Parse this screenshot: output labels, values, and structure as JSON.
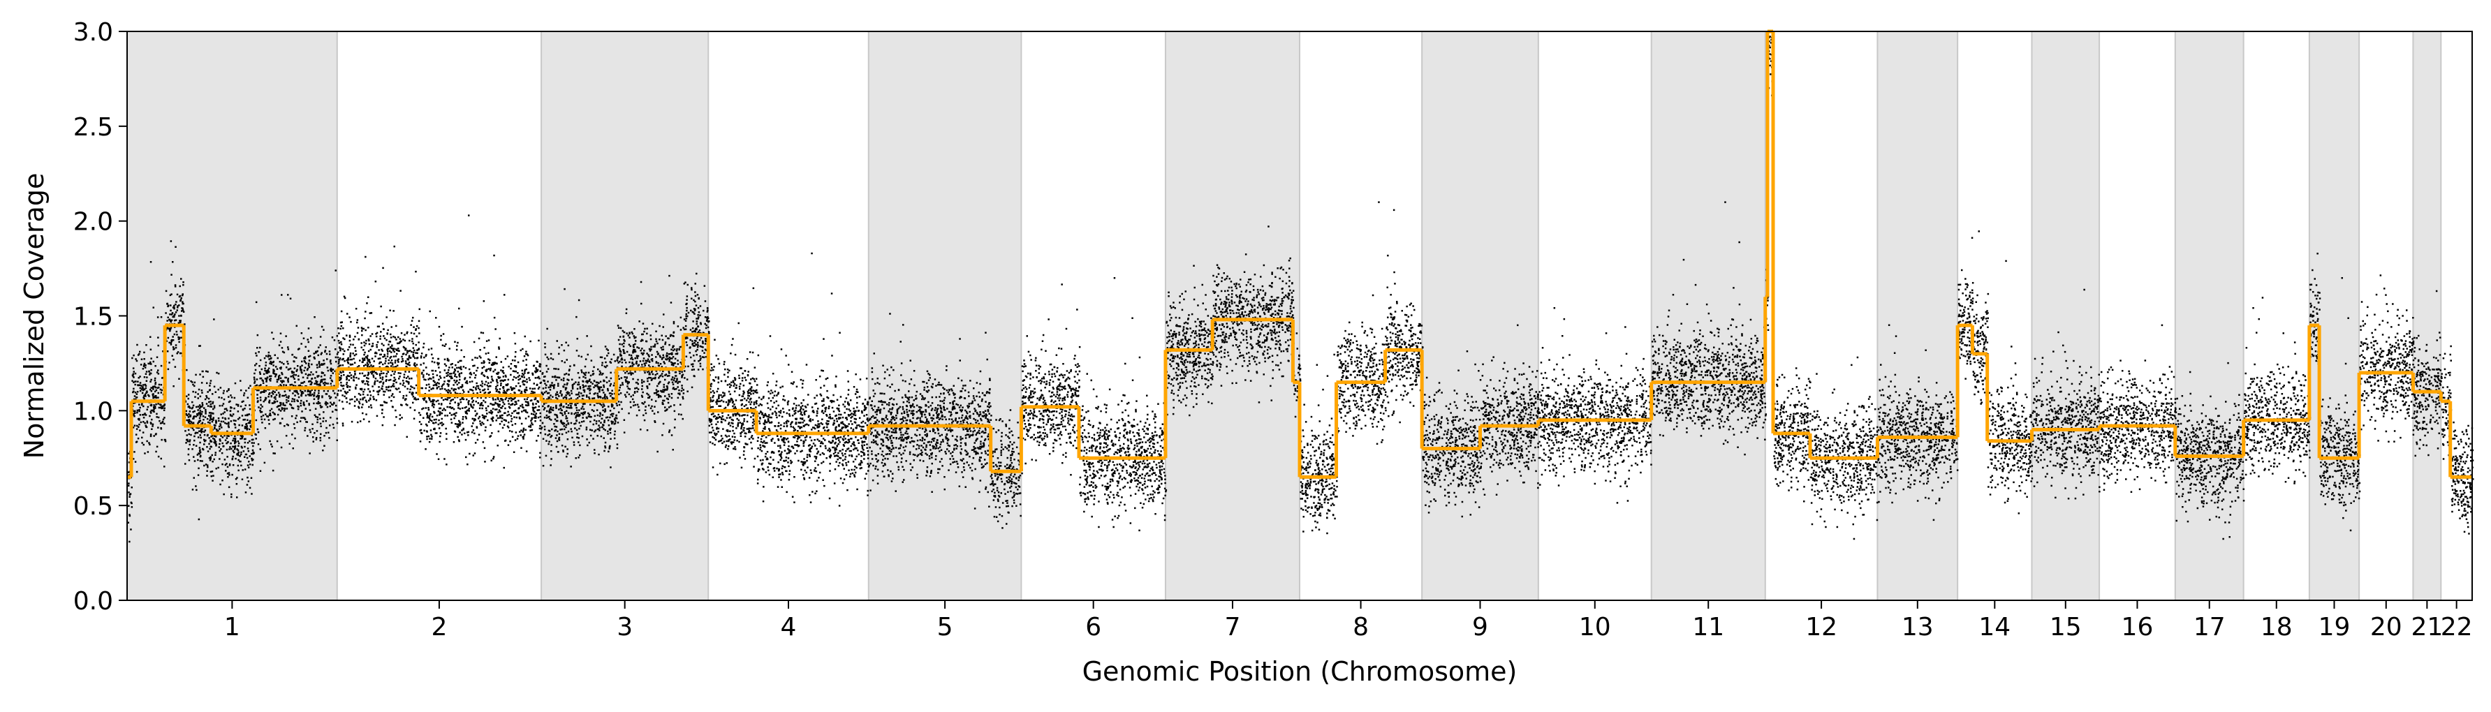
{
  "chart_data": {
    "type": "scatter",
    "title": "",
    "xlabel": "Genomic Position (Chromosome)",
    "ylabel": "Normalized Coverage",
    "ylim": [
      0,
      3
    ],
    "yticks": [
      0.0,
      0.5,
      1.0,
      1.5,
      2.0,
      2.5,
      3.0
    ],
    "ytick_labels": [
      "0.0",
      "0.5",
      "1.0",
      "1.5",
      "2.0",
      "2.5",
      "3.0"
    ],
    "grid": false,
    "legend": "none",
    "chromosome_bands": "alternating gray/white",
    "colors": {
      "points": "#000000",
      "segments": "#ffa500",
      "band": "#e5e5e5",
      "band_edge": "#c8c8c8"
    },
    "chromosomes": [
      {
        "label": "1",
        "size": 249,
        "baseline": 1.0,
        "shaded": true
      },
      {
        "label": "2",
        "size": 242,
        "baseline": 1.12,
        "shaded": false
      },
      {
        "label": "3",
        "size": 198,
        "baseline": 1.15,
        "shaded": true
      },
      {
        "label": "4",
        "size": 190,
        "baseline": 0.93,
        "shaded": false
      },
      {
        "label": "5",
        "size": 181,
        "baseline": 0.9,
        "shaded": true
      },
      {
        "label": "6",
        "size": 171,
        "baseline": 0.85,
        "shaded": false
      },
      {
        "label": "7",
        "size": 159,
        "baseline": 1.42,
        "shaded": true
      },
      {
        "label": "8",
        "size": 145,
        "baseline": 1.05,
        "shaded": false
      },
      {
        "label": "9",
        "size": 138,
        "baseline": 0.87,
        "shaded": true
      },
      {
        "label": "10",
        "size": 134,
        "baseline": 0.95,
        "shaded": false
      },
      {
        "label": "11",
        "size": 135,
        "baseline": 1.15,
        "shaded": true
      },
      {
        "label": "12",
        "size": 133,
        "baseline": 0.9,
        "shaded": false
      },
      {
        "label": "13",
        "size": 95,
        "baseline": 0.85,
        "shaded": true
      },
      {
        "label": "14",
        "size": 88,
        "baseline": 1.05,
        "shaded": false
      },
      {
        "label": "15",
        "size": 80,
        "baseline": 0.88,
        "shaded": true
      },
      {
        "label": "16",
        "size": 90,
        "baseline": 0.92,
        "shaded": false
      },
      {
        "label": "17",
        "size": 81,
        "baseline": 0.78,
        "shaded": true
      },
      {
        "label": "18",
        "size": 78,
        "baseline": 0.95,
        "shaded": false
      },
      {
        "label": "19",
        "size": 59,
        "baseline": 0.8,
        "shaded": true
      },
      {
        "label": "20",
        "size": 64,
        "baseline": 1.2,
        "shaded": false
      },
      {
        "label": "21",
        "size": 33,
        "baseline": 1.12,
        "shaded": true
      },
      {
        "label": "22",
        "size": 37,
        "baseline": 0.8,
        "shaded": false
      }
    ],
    "segments": [
      {
        "chrom": "1",
        "start": 0.0,
        "end": 0.02,
        "value": 0.65
      },
      {
        "chrom": "1",
        "start": 0.02,
        "end": 0.18,
        "value": 1.05
      },
      {
        "chrom": "1",
        "start": 0.18,
        "end": 0.27,
        "value": 1.45
      },
      {
        "chrom": "1",
        "start": 0.27,
        "end": 0.4,
        "value": 0.92
      },
      {
        "chrom": "1",
        "start": 0.4,
        "end": 0.6,
        "value": 0.88
      },
      {
        "chrom": "1",
        "start": 0.6,
        "end": 1.0,
        "value": 1.12
      },
      {
        "chrom": "2",
        "start": 0.0,
        "end": 0.4,
        "value": 1.22
      },
      {
        "chrom": "2",
        "start": 0.4,
        "end": 1.0,
        "value": 1.08
      },
      {
        "chrom": "3",
        "start": 0.0,
        "end": 0.45,
        "value": 1.05
      },
      {
        "chrom": "3",
        "start": 0.45,
        "end": 0.85,
        "value": 1.22
      },
      {
        "chrom": "3",
        "start": 0.85,
        "end": 1.0,
        "value": 1.4
      },
      {
        "chrom": "4",
        "start": 0.0,
        "end": 0.3,
        "value": 1.0
      },
      {
        "chrom": "4",
        "start": 0.3,
        "end": 1.0,
        "value": 0.88
      },
      {
        "chrom": "5",
        "start": 0.0,
        "end": 0.8,
        "value": 0.92
      },
      {
        "chrom": "5",
        "start": 0.8,
        "end": 1.0,
        "value": 0.68
      },
      {
        "chrom": "6",
        "start": 0.0,
        "end": 0.4,
        "value": 1.02
      },
      {
        "chrom": "6",
        "start": 0.4,
        "end": 1.0,
        "value": 0.75
      },
      {
        "chrom": "7",
        "start": 0.0,
        "end": 0.35,
        "value": 1.32
      },
      {
        "chrom": "7",
        "start": 0.35,
        "end": 0.95,
        "value": 1.48
      },
      {
        "chrom": "7",
        "start": 0.95,
        "end": 1.0,
        "value": 1.15
      },
      {
        "chrom": "8",
        "start": 0.0,
        "end": 0.3,
        "value": 0.65
      },
      {
        "chrom": "8",
        "start": 0.3,
        "end": 0.7,
        "value": 1.15
      },
      {
        "chrom": "8",
        "start": 0.7,
        "end": 1.0,
        "value": 1.32
      },
      {
        "chrom": "9",
        "start": 0.0,
        "end": 0.5,
        "value": 0.8
      },
      {
        "chrom": "9",
        "start": 0.5,
        "end": 1.0,
        "value": 0.92
      },
      {
        "chrom": "10",
        "start": 0.0,
        "end": 1.0,
        "value": 0.95
      },
      {
        "chrom": "11",
        "start": 0.0,
        "end": 1.0,
        "value": 1.15
      },
      {
        "chrom": "12",
        "start": 0.0,
        "end": 0.02,
        "value": 1.6
      },
      {
        "chrom": "12",
        "start": 0.02,
        "end": 0.07,
        "value": 3.0
      },
      {
        "chrom": "12",
        "start": 0.07,
        "end": 0.4,
        "value": 0.88
      },
      {
        "chrom": "12",
        "start": 0.4,
        "end": 1.0,
        "value": 0.75
      },
      {
        "chrom": "13",
        "start": 0.0,
        "end": 1.0,
        "value": 0.86
      },
      {
        "chrom": "14",
        "start": 0.0,
        "end": 0.2,
        "value": 1.45
      },
      {
        "chrom": "14",
        "start": 0.2,
        "end": 0.4,
        "value": 1.3
      },
      {
        "chrom": "14",
        "start": 0.4,
        "end": 1.0,
        "value": 0.84
      },
      {
        "chrom": "15",
        "start": 0.0,
        "end": 1.0,
        "value": 0.9
      },
      {
        "chrom": "16",
        "start": 0.0,
        "end": 1.0,
        "value": 0.92
      },
      {
        "chrom": "17",
        "start": 0.0,
        "end": 1.0,
        "value": 0.76
      },
      {
        "chrom": "18",
        "start": 0.0,
        "end": 1.0,
        "value": 0.95
      },
      {
        "chrom": "19",
        "start": 0.0,
        "end": 0.2,
        "value": 1.45
      },
      {
        "chrom": "19",
        "start": 0.2,
        "end": 1.0,
        "value": 0.75
      },
      {
        "chrom": "20",
        "start": 0.0,
        "end": 1.0,
        "value": 1.2
      },
      {
        "chrom": "21",
        "start": 0.0,
        "end": 1.0,
        "value": 1.1
      },
      {
        "chrom": "22",
        "start": 0.0,
        "end": 0.3,
        "value": 1.05
      },
      {
        "chrom": "22",
        "start": 0.3,
        "end": 1.0,
        "value": 0.65
      }
    ]
  }
}
